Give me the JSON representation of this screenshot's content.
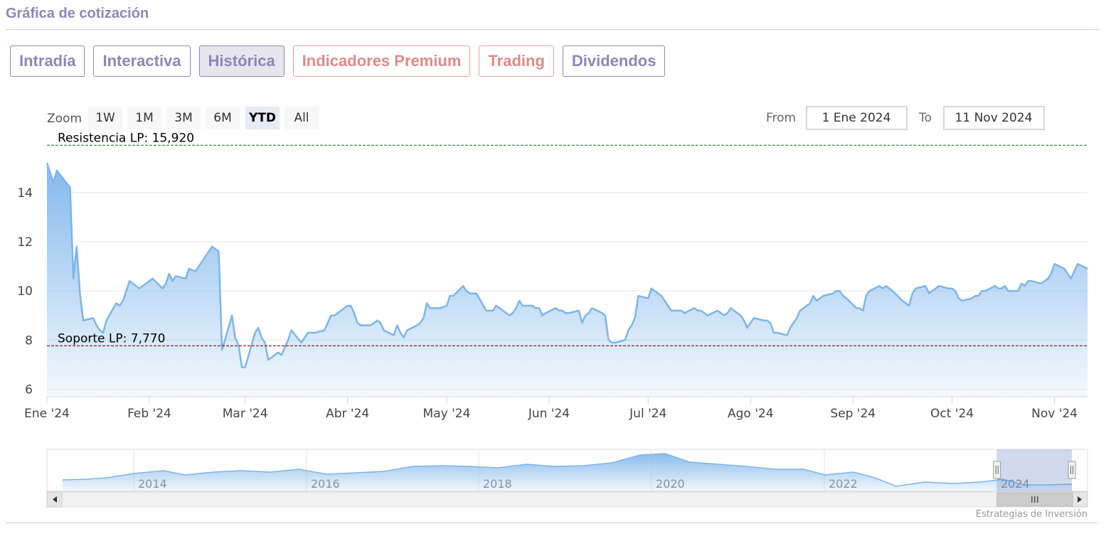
{
  "page": {
    "title": "Gráfica de cotización"
  },
  "tabs": [
    {
      "label": "Intradía",
      "color": "#8e86b8",
      "active": false
    },
    {
      "label": "Interactiva",
      "color": "#8e86b8",
      "active": false
    },
    {
      "label": "Histórica",
      "color": "#8e86b8",
      "active": true
    },
    {
      "label": "Indicadores Premium",
      "color": "#e08a88",
      "active": false
    },
    {
      "label": "Trading",
      "color": "#e08a88",
      "active": false
    },
    {
      "label": "Dividendos",
      "color": "#8e86b8",
      "active": false
    }
  ],
  "zoom": {
    "label": "Zoom",
    "buttons": [
      "1W",
      "1M",
      "3M",
      "6M",
      "YTD",
      "All"
    ],
    "selected": "YTD"
  },
  "range": {
    "from_label": "From",
    "from_value": "1 Ene 2024",
    "to_label": "To",
    "to_value": "11 Nov 2024"
  },
  "chart_data": {
    "type": "area",
    "series": [
      {
        "color": "#7cb5ec"
      }
    ],
    "x_range": [
      "2024-01-01",
      "2024-11-11"
    ],
    "x_tick_labels": [
      "Ene '24",
      "Feb '24",
      "Mar '24",
      "Abr '24",
      "May '24",
      "Jun '24",
      "Jul '24",
      "Ago '24",
      "Sep '24",
      "Oct '24",
      "Nov '24"
    ],
    "y_tick_labels": [
      "6",
      "8",
      "10",
      "12",
      "14"
    ],
    "ylim": [
      5.7,
      15.9
    ],
    "grid": true,
    "points": [
      [
        "2024-01-01",
        15.2
      ],
      [
        "2024-01-03",
        14.4
      ],
      [
        "2024-01-04",
        14.9
      ],
      [
        "2024-01-08",
        14.2
      ],
      [
        "2024-01-09",
        10.5
      ],
      [
        "2024-01-10",
        11.8
      ],
      [
        "2024-01-11",
        9.9
      ],
      [
        "2024-01-12",
        8.8
      ],
      [
        "2024-01-15",
        8.9
      ],
      [
        "2024-01-16",
        8.6
      ],
      [
        "2024-01-17",
        8.4
      ],
      [
        "2024-01-18",
        8.3
      ],
      [
        "2024-01-19",
        8.8
      ],
      [
        "2024-01-22",
        9.5
      ],
      [
        "2024-01-23",
        9.4
      ],
      [
        "2024-01-24",
        9.6
      ],
      [
        "2024-01-25",
        10.0
      ],
      [
        "2024-01-26",
        10.4
      ],
      [
        "2024-01-29",
        10.1
      ],
      [
        "2024-01-31",
        10.3
      ],
      [
        "2024-02-02",
        10.5
      ],
      [
        "2024-02-05",
        10.1
      ],
      [
        "2024-02-06",
        10.3
      ],
      [
        "2024-02-07",
        10.7
      ],
      [
        "2024-02-08",
        10.4
      ],
      [
        "2024-02-09",
        10.6
      ],
      [
        "2024-02-12",
        10.5
      ],
      [
        "2024-02-13",
        10.9
      ],
      [
        "2024-02-15",
        10.8
      ],
      [
        "2024-02-16",
        11.0
      ],
      [
        "2024-02-19",
        11.6
      ],
      [
        "2024-02-20",
        11.8
      ],
      [
        "2024-02-22",
        11.6
      ],
      [
        "2024-02-23",
        7.6
      ],
      [
        "2024-02-26",
        9.0
      ],
      [
        "2024-02-27",
        8.1
      ],
      [
        "2024-02-28",
        7.8
      ],
      [
        "2024-02-29",
        6.9
      ],
      [
        "2024-03-01",
        6.9
      ],
      [
        "2024-03-04",
        8.3
      ],
      [
        "2024-03-05",
        8.5
      ],
      [
        "2024-03-06",
        8.1
      ],
      [
        "2024-03-07",
        7.9
      ],
      [
        "2024-03-08",
        7.2
      ],
      [
        "2024-03-11",
        7.5
      ],
      [
        "2024-03-12",
        7.4
      ],
      [
        "2024-03-13",
        7.7
      ],
      [
        "2024-03-14",
        8.0
      ],
      [
        "2024-03-15",
        8.4
      ],
      [
        "2024-03-18",
        7.9
      ],
      [
        "2024-03-19",
        8.1
      ],
      [
        "2024-03-20",
        8.3
      ],
      [
        "2024-03-22",
        8.3
      ],
      [
        "2024-03-25",
        8.4
      ],
      [
        "2024-03-26",
        8.7
      ],
      [
        "2024-03-27",
        9.0
      ],
      [
        "2024-03-28",
        9.0
      ],
      [
        "2024-04-01",
        9.4
      ],
      [
        "2024-04-02",
        9.4
      ],
      [
        "2024-04-03",
        9.1
      ],
      [
        "2024-04-04",
        8.7
      ],
      [
        "2024-04-05",
        8.6
      ],
      [
        "2024-04-08",
        8.6
      ],
      [
        "2024-04-09",
        8.7
      ],
      [
        "2024-04-10",
        8.8
      ],
      [
        "2024-04-11",
        8.7
      ],
      [
        "2024-04-12",
        8.4
      ],
      [
        "2024-04-15",
        8.2
      ],
      [
        "2024-04-16",
        8.6
      ],
      [
        "2024-04-17",
        8.3
      ],
      [
        "2024-04-18",
        8.1
      ],
      [
        "2024-04-19",
        8.4
      ],
      [
        "2024-04-22",
        8.6
      ],
      [
        "2024-04-23",
        8.7
      ],
      [
        "2024-04-24",
        8.9
      ],
      [
        "2024-04-25",
        9.5
      ],
      [
        "2024-04-26",
        9.3
      ],
      [
        "2024-04-29",
        9.3
      ],
      [
        "2024-05-01",
        9.4
      ],
      [
        "2024-05-02",
        9.8
      ],
      [
        "2024-05-03",
        9.8
      ],
      [
        "2024-05-06",
        10.2
      ],
      [
        "2024-05-07",
        10.0
      ],
      [
        "2024-05-08",
        9.9
      ],
      [
        "2024-05-09",
        9.9
      ],
      [
        "2024-05-10",
        9.9
      ],
      [
        "2024-05-13",
        9.2
      ],
      [
        "2024-05-14",
        9.2
      ],
      [
        "2024-05-15",
        9.2
      ],
      [
        "2024-05-16",
        9.4
      ],
      [
        "2024-05-17",
        9.3
      ],
      [
        "2024-05-20",
        9.0
      ],
      [
        "2024-05-21",
        9.1
      ],
      [
        "2024-05-22",
        9.3
      ],
      [
        "2024-05-23",
        9.6
      ],
      [
        "2024-05-24",
        9.4
      ],
      [
        "2024-05-27",
        9.4
      ],
      [
        "2024-05-28",
        9.3
      ],
      [
        "2024-05-29",
        9.3
      ],
      [
        "2024-05-30",
        9.0
      ],
      [
        "2024-05-31",
        9.1
      ],
      [
        "2024-06-03",
        9.3
      ],
      [
        "2024-06-04",
        9.2
      ],
      [
        "2024-06-05",
        9.2
      ],
      [
        "2024-06-06",
        9.1
      ],
      [
        "2024-06-07",
        9.1
      ],
      [
        "2024-06-10",
        9.2
      ],
      [
        "2024-06-11",
        8.7
      ],
      [
        "2024-06-12",
        9.0
      ],
      [
        "2024-06-13",
        9.1
      ],
      [
        "2024-06-14",
        9.3
      ],
      [
        "2024-06-17",
        9.1
      ],
      [
        "2024-06-18",
        9.0
      ],
      [
        "2024-06-19",
        8.0
      ],
      [
        "2024-06-20",
        7.9
      ],
      [
        "2024-06-21",
        7.9
      ],
      [
        "2024-06-24",
        8.0
      ],
      [
        "2024-06-25",
        8.4
      ],
      [
        "2024-06-26",
        8.6
      ],
      [
        "2024-06-27",
        8.9
      ],
      [
        "2024-06-28",
        9.8
      ],
      [
        "2024-07-01",
        9.7
      ],
      [
        "2024-07-02",
        10.1
      ],
      [
        "2024-07-03",
        10.0
      ],
      [
        "2024-07-05",
        9.8
      ],
      [
        "2024-07-08",
        9.2
      ],
      [
        "2024-07-09",
        9.2
      ],
      [
        "2024-07-10",
        9.2
      ],
      [
        "2024-07-11",
        9.2
      ],
      [
        "2024-07-12",
        9.1
      ],
      [
        "2024-07-15",
        9.3
      ],
      [
        "2024-07-16",
        9.2
      ],
      [
        "2024-07-17",
        9.2
      ],
      [
        "2024-07-18",
        9.1
      ],
      [
        "2024-07-19",
        9.0
      ],
      [
        "2024-07-22",
        9.2
      ],
      [
        "2024-07-23",
        9.1
      ],
      [
        "2024-07-24",
        9.0
      ],
      [
        "2024-07-25",
        9.1
      ],
      [
        "2024-07-26",
        9.3
      ],
      [
        "2024-07-29",
        9.0
      ],
      [
        "2024-07-30",
        8.8
      ],
      [
        "2024-07-31",
        8.5
      ],
      [
        "2024-08-01",
        8.7
      ],
      [
        "2024-08-02",
        8.9
      ],
      [
        "2024-08-05",
        8.8
      ],
      [
        "2024-08-06",
        8.8
      ],
      [
        "2024-08-07",
        8.7
      ],
      [
        "2024-08-08",
        8.3
      ],
      [
        "2024-08-09",
        8.3
      ],
      [
        "2024-08-12",
        8.2
      ],
      [
        "2024-08-13",
        8.5
      ],
      [
        "2024-08-14",
        8.7
      ],
      [
        "2024-08-15",
        8.9
      ],
      [
        "2024-08-16",
        9.2
      ],
      [
        "2024-08-19",
        9.5
      ],
      [
        "2024-08-20",
        9.8
      ],
      [
        "2024-08-21",
        9.6
      ],
      [
        "2024-08-22",
        9.7
      ],
      [
        "2024-08-23",
        9.8
      ],
      [
        "2024-08-26",
        9.9
      ],
      [
        "2024-08-27",
        10.0
      ],
      [
        "2024-08-28",
        10.0
      ],
      [
        "2024-08-29",
        9.8
      ],
      [
        "2024-08-30",
        9.7
      ],
      [
        "2024-09-02",
        9.3
      ],
      [
        "2024-09-03",
        9.3
      ],
      [
        "2024-09-04",
        9.2
      ],
      [
        "2024-09-05",
        9.8
      ],
      [
        "2024-09-06",
        10.0
      ],
      [
        "2024-09-09",
        10.2
      ],
      [
        "2024-09-10",
        10.1
      ],
      [
        "2024-09-11",
        10.2
      ],
      [
        "2024-09-12",
        10.1
      ],
      [
        "2024-09-13",
        10.0
      ],
      [
        "2024-09-16",
        9.6
      ],
      [
        "2024-09-17",
        9.5
      ],
      [
        "2024-09-18",
        9.4
      ],
      [
        "2024-09-19",
        9.9
      ],
      [
        "2024-09-20",
        10.1
      ],
      [
        "2024-09-23",
        10.2
      ],
      [
        "2024-09-24",
        9.9
      ],
      [
        "2024-09-25",
        10.0
      ],
      [
        "2024-09-26",
        10.1
      ],
      [
        "2024-09-27",
        10.2
      ],
      [
        "2024-09-30",
        10.1
      ],
      [
        "2024-10-01",
        10.1
      ],
      [
        "2024-10-02",
        10.0
      ],
      [
        "2024-10-03",
        9.7
      ],
      [
        "2024-10-04",
        9.6
      ],
      [
        "2024-10-07",
        9.7
      ],
      [
        "2024-10-08",
        9.8
      ],
      [
        "2024-10-09",
        9.8
      ],
      [
        "2024-10-10",
        10.0
      ],
      [
        "2024-10-11",
        10.0
      ],
      [
        "2024-10-14",
        10.2
      ],
      [
        "2024-10-15",
        10.1
      ],
      [
        "2024-10-16",
        10.1
      ],
      [
        "2024-10-17",
        10.2
      ],
      [
        "2024-10-18",
        10.0
      ],
      [
        "2024-10-21",
        10.0
      ],
      [
        "2024-10-22",
        10.3
      ],
      [
        "2024-10-23",
        10.2
      ],
      [
        "2024-10-24",
        10.4
      ],
      [
        "2024-10-25",
        10.4
      ],
      [
        "2024-10-28",
        10.3
      ],
      [
        "2024-10-29",
        10.4
      ],
      [
        "2024-10-30",
        10.5
      ],
      [
        "2024-10-31",
        10.7
      ],
      [
        "2024-11-01",
        11.1
      ],
      [
        "2024-11-04",
        10.9
      ],
      [
        "2024-11-05",
        10.7
      ],
      [
        "2024-11-06",
        10.5
      ],
      [
        "2024-11-07",
        10.8
      ],
      [
        "2024-11-08",
        11.1
      ],
      [
        "2024-11-11",
        10.9
      ]
    ],
    "annotations": [
      {
        "label": "Resistencia LP: 15,920",
        "value": 15.92,
        "color": "#2e7d32"
      },
      {
        "label": "Soporte LP: 7,770",
        "value": 7.77,
        "color": "#a0182b"
      }
    ]
  },
  "navigator": {
    "year_labels": [
      "2014",
      "2016",
      "2018",
      "2020",
      "2022",
      "2024"
    ],
    "selection_start_fraction": 0.913,
    "selection_end_fraction": 0.985
  },
  "credits": "Estrategias de Inversión"
}
